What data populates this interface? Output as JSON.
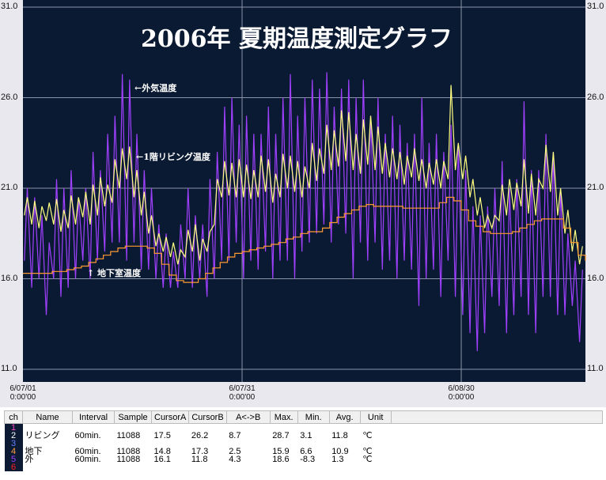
{
  "chart_data": {
    "type": "line",
    "title": "2006年 夏期温度測定グラフ",
    "ylim": [
      11.0,
      31.0
    ],
    "yticks": [
      "31.0",
      "26.0",
      "21.0",
      "16.0",
      "11.0"
    ],
    "xlim_days": [
      0,
      77
    ],
    "xticks": [
      {
        "day": 0,
        "date": "6/07/01",
        "time": "0:00'00"
      },
      {
        "day": 30,
        "date": "6/07/31",
        "time": "0:00'00"
      },
      {
        "day": 60,
        "date": "6/08/30",
        "time": "0:00'00"
      }
    ],
    "grid": true,
    "annotations": {
      "outside": "←外気温度",
      "living": "←1階リビング温度",
      "basement": "↑ 地下室温度"
    },
    "series": [
      {
        "name": "外",
        "color": "#a040ff",
        "daily_min_max": [
          [
            17,
            21
          ],
          [
            15.5,
            20.5
          ],
          [
            16,
            19.5
          ],
          [
            14,
            18
          ],
          [
            16,
            21.5
          ],
          [
            15,
            21
          ],
          [
            15.5,
            22
          ],
          [
            16,
            20.5
          ],
          [
            17,
            21
          ],
          [
            16,
            23
          ],
          [
            17,
            22
          ],
          [
            17.5,
            24
          ],
          [
            18,
            25
          ],
          [
            18,
            27.3
          ],
          [
            17,
            27
          ],
          [
            18,
            24
          ],
          [
            16.5,
            22
          ],
          [
            16.5,
            21
          ],
          [
            16,
            19
          ],
          [
            15.5,
            18.5
          ],
          [
            15.5,
            17.5
          ],
          [
            15.5,
            19
          ],
          [
            16,
            21
          ],
          [
            15.5,
            19.5
          ],
          [
            16,
            19
          ],
          [
            15,
            21.5
          ],
          [
            16,
            23
          ],
          [
            17,
            25.5
          ],
          [
            17,
            26
          ],
          [
            18,
            24.5
          ],
          [
            16,
            25
          ],
          [
            17,
            24
          ],
          [
            16.5,
            24
          ],
          [
            17.5,
            25.5
          ],
          [
            16,
            24
          ],
          [
            17,
            26
          ],
          [
            17,
            27.3
          ],
          [
            16,
            25
          ],
          [
            17.5,
            26
          ],
          [
            18,
            27
          ],
          [
            18.5,
            26.5
          ],
          [
            19,
            27.4
          ],
          [
            18,
            25.5
          ],
          [
            19,
            26.5
          ],
          [
            18.5,
            27
          ],
          [
            16,
            26
          ],
          [
            18,
            27
          ],
          [
            17,
            25
          ],
          [
            18,
            26
          ],
          [
            16.5,
            24
          ],
          [
            17,
            25
          ],
          [
            16,
            24.5
          ],
          [
            17,
            23.5
          ],
          [
            16.5,
            24
          ],
          [
            14.5,
            26
          ],
          [
            16,
            23.5
          ],
          [
            16.5,
            24
          ],
          [
            15,
            23
          ],
          [
            17,
            24.5
          ],
          [
            15,
            23.5
          ],
          [
            14,
            22
          ],
          [
            13,
            20
          ],
          [
            12,
            19.5
          ],
          [
            13,
            20
          ],
          [
            15,
            21
          ],
          [
            14.5,
            22.5
          ],
          [
            13,
            21
          ],
          [
            14,
            21.5
          ],
          [
            15,
            25.8
          ],
          [
            14,
            22
          ],
          [
            13,
            22
          ],
          [
            15,
            24
          ],
          [
            15,
            23
          ],
          [
            14,
            21
          ],
          [
            14,
            18.5
          ],
          [
            14.5,
            17
          ],
          [
            12.5,
            16.5
          ],
          [
            15,
            17
          ]
        ]
      },
      {
        "name": "リビング",
        "color": "#ffff80",
        "daily_min_max": [
          [
            19.5,
            20.5
          ],
          [
            19,
            20.3
          ],
          [
            18.8,
            20
          ],
          [
            19.2,
            20.2
          ],
          [
            19,
            20.4
          ],
          [
            18.6,
            19.8
          ],
          [
            18.8,
            20.6
          ],
          [
            19,
            20.5
          ],
          [
            19.4,
            20.8
          ],
          [
            19,
            21.2
          ],
          [
            19.5,
            21.6
          ],
          [
            20,
            21.2
          ],
          [
            20.2,
            22.6
          ],
          [
            21,
            23.2
          ],
          [
            21.5,
            23.3
          ],
          [
            20.5,
            22
          ],
          [
            19.5,
            20.8
          ],
          [
            18.5,
            19.5
          ],
          [
            17.8,
            18.5
          ],
          [
            17.5,
            18.3
          ],
          [
            17.2,
            18
          ],
          [
            16.8,
            17.6
          ],
          [
            17.2,
            18.7
          ],
          [
            17.5,
            19
          ],
          [
            17,
            18.2
          ],
          [
            17.5,
            18.6
          ],
          [
            19,
            21.5
          ],
          [
            20.5,
            22.5
          ],
          [
            20.6,
            22.4
          ],
          [
            20.5,
            22.6
          ],
          [
            20.5,
            22.3
          ],
          [
            20.4,
            22
          ],
          [
            20.5,
            22.8
          ],
          [
            20.8,
            22.6
          ],
          [
            20.2,
            21.8
          ],
          [
            20.5,
            22.9
          ],
          [
            21,
            22.8
          ],
          [
            20.8,
            22.5
          ],
          [
            20.5,
            22.2
          ],
          [
            21,
            23.5
          ],
          [
            21.4,
            23.2
          ],
          [
            21.8,
            24.5
          ],
          [
            22,
            24.2
          ],
          [
            22.2,
            25.3
          ],
          [
            22.5,
            25.2
          ],
          [
            22,
            24
          ],
          [
            21.8,
            24.8
          ],
          [
            22.3,
            25
          ],
          [
            22,
            24.4
          ],
          [
            21.8,
            23.5
          ],
          [
            21.6,
            23.2
          ],
          [
            21.5,
            23
          ],
          [
            21.2,
            22.8
          ],
          [
            21.6,
            23.2
          ],
          [
            21.4,
            22.6
          ],
          [
            21,
            22.4
          ],
          [
            21.2,
            22.6
          ],
          [
            21,
            22.5
          ],
          [
            21.5,
            26.7
          ],
          [
            22,
            23.5
          ],
          [
            21.5,
            22.8
          ],
          [
            20.5,
            21.5
          ],
          [
            19.5,
            20.5
          ],
          [
            18.8,
            19.5
          ],
          [
            18.8,
            19.5
          ],
          [
            19.2,
            21.2
          ],
          [
            19.5,
            21.5
          ],
          [
            19.8,
            21.3
          ],
          [
            20,
            22.6
          ],
          [
            19.6,
            21.8
          ],
          [
            19.5,
            21.5
          ],
          [
            21,
            23.4
          ],
          [
            20.8,
            23
          ],
          [
            19.5,
            21
          ],
          [
            18.5,
            19.8
          ],
          [
            17.5,
            18.7
          ],
          [
            16.8,
            17.8
          ],
          [
            16.5,
            17.5
          ]
        ]
      },
      {
        "name": "地下",
        "color": "#ff9a30",
        "daily": [
          16.3,
          16.3,
          16.3,
          16.3,
          16.4,
          16.4,
          16.5,
          16.6,
          16.7,
          16.9,
          17.1,
          17.3,
          17.5,
          17.7,
          17.8,
          17.8,
          17.8,
          17.7,
          17.4,
          16.8,
          16.2,
          15.9,
          15.8,
          15.8,
          16.0,
          16.3,
          16.6,
          16.9,
          17.2,
          17.4,
          17.5,
          17.6,
          17.7,
          17.8,
          17.9,
          18.0,
          18.2,
          18.3,
          18.5,
          18.6,
          18.6,
          18.8,
          19.1,
          19.4,
          19.6,
          19.8,
          20.0,
          20.1,
          20.0,
          20.0,
          20.0,
          20.0,
          19.9,
          19.9,
          19.9,
          19.9,
          19.9,
          20.2,
          20.5,
          20.3,
          19.8,
          19.2,
          18.9,
          18.6,
          18.5,
          18.5,
          18.5,
          18.6,
          18.8,
          19.0,
          19.2,
          19.3,
          19.3,
          19.3,
          18.8,
          18.0,
          17.3,
          17.0
        ]
      }
    ]
  },
  "table": {
    "headers": [
      "ch",
      "Name",
      "Interval",
      "Sample",
      "CursorA",
      "CursorB",
      "A<->B",
      "Max.",
      "Min.",
      "Avg.",
      "Unit"
    ],
    "rows": [
      {
        "ch": "1",
        "color": "#ff40c0",
        "cells": [
          "",
          "",
          "",
          "",
          "",
          "",
          "",
          "",
          "",
          ""
        ]
      },
      {
        "ch": "2",
        "color": "#ffffff",
        "cells": [
          "リビング",
          "60min.",
          "11088",
          "17.5",
          "26.2",
          "8.7",
          "28.7",
          "3.1",
          "11.8",
          "℃"
        ]
      },
      {
        "ch": "3",
        "color": "#6080ff",
        "cells": [
          "",
          "",
          "",
          "",
          "",
          "",
          "",
          "",
          "",
          ""
        ]
      },
      {
        "ch": "4",
        "color": "#ffa040",
        "cells": [
          "地下",
          "60min.",
          "11088",
          "14.8",
          "17.3",
          "2.5",
          "15.9",
          "6.6",
          "10.9",
          "℃"
        ]
      },
      {
        "ch": "5",
        "color": "#a040ff",
        "cells": [
          "外",
          "60min.",
          "11088",
          "16.1",
          "11.8",
          "4.3",
          "18.6",
          "-8.3",
          "1.3",
          "℃"
        ]
      },
      {
        "ch": "6",
        "color": "#ff2020",
        "cells": [
          "",
          "",
          "",
          "",
          "",
          "",
          "",
          "",
          "",
          ""
        ]
      }
    ]
  }
}
